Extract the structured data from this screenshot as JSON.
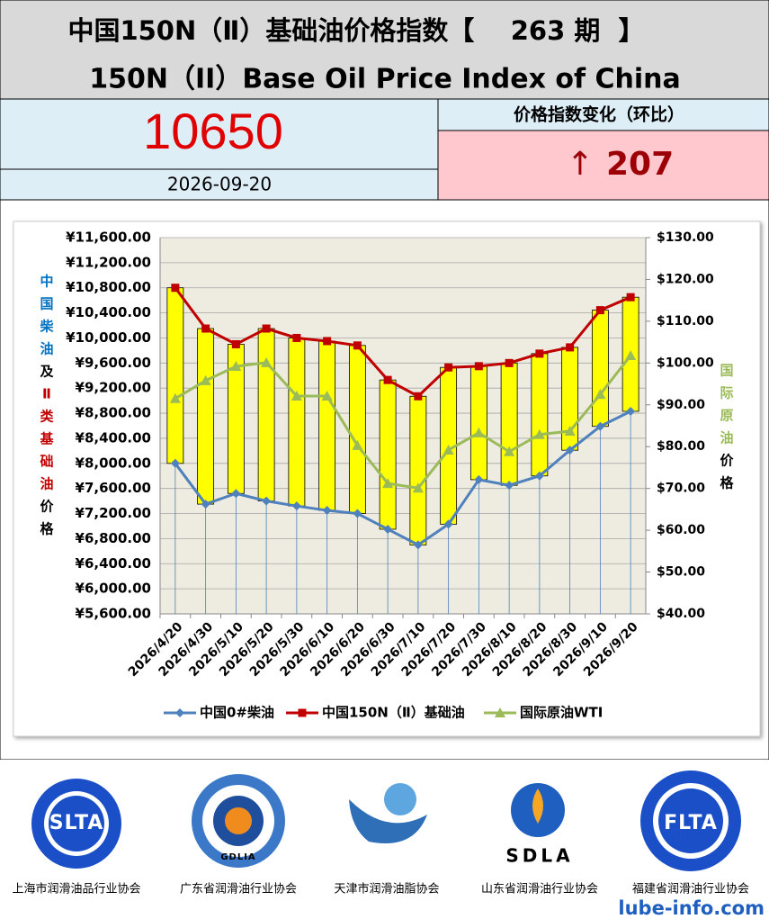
{
  "header": {
    "title": "中国150N（Ⅱ）基础油价格指数【    263 期  】",
    "subtitle": "150N（II）Base Oil Price Index of China",
    "index_value": 10650,
    "date": "2026-09-20",
    "change_label": "价格指数变化（环比）",
    "change_arrow": "↑",
    "change_value": 207
  },
  "chart_data": {
    "type": "line",
    "categories": [
      "2026/4/20",
      "2026/4/30",
      "2026/5/10",
      "2026/5/20",
      "2026/5/30",
      "2026/6/10",
      "2026/6/20",
      "2026/6/30",
      "2026/7/10",
      "2026/7/20",
      "2026/7/30",
      "2026/8/10",
      "2026/8/20",
      "2026/8/30",
      "2026/9/10",
      "2026/9/20"
    ],
    "series": [
      {
        "name": "中国0#柴油",
        "color": "#4f81bd",
        "marker": "diamond",
        "values": [
          8000,
          7350,
          7520,
          7400,
          7320,
          7250,
          7200,
          6950,
          6700,
          7030,
          7740,
          7650,
          7800,
          8210,
          8590,
          8830
        ]
      },
      {
        "name": "中国150N（Ⅱ）基础油",
        "color": "#c00000",
        "marker": "square",
        "values": [
          10800,
          10150,
          9900,
          10150,
          10000,
          9950,
          9880,
          9330,
          9070,
          9530,
          9550,
          9600,
          9750,
          9850,
          10443,
          10650
        ]
      },
      {
        "name": "国际原油WTI",
        "color": "#9bbb59",
        "marker": "triangle",
        "axis": "y2",
        "values": [
          91.5,
          95.8,
          99.2,
          100.1,
          92.1,
          92.1,
          80.3,
          71.2,
          70.1,
          79.2,
          83.3,
          78.8,
          82.9,
          83.7,
          92.5,
          101.8
        ]
      }
    ],
    "ylim": [
      5600,
      11600
    ],
    "yticks": [
      {
        "value": 5600,
        "label": "¥5,600.00"
      },
      {
        "value": 6000,
        "label": "¥6,000.00"
      },
      {
        "value": 6400,
        "label": "¥6,400.00"
      },
      {
        "value": 6800,
        "label": "¥6,800.00"
      },
      {
        "value": 7200,
        "label": "¥7,200.00"
      },
      {
        "value": 7600,
        "label": "¥7,600.00"
      },
      {
        "value": 8000,
        "label": "¥8,000.00"
      },
      {
        "value": 8400,
        "label": "¥8,400.00"
      },
      {
        "value": 8800,
        "label": "¥8,800.00"
      },
      {
        "value": 9200,
        "label": "¥9,200.00"
      },
      {
        "value": 9600,
        "label": "¥9,600.00"
      },
      {
        "value": 10000,
        "label": "¥10,000.00"
      },
      {
        "value": 10400,
        "label": "¥10,400.00"
      },
      {
        "value": 10800,
        "label": "¥10,800.00"
      },
      {
        "value": 11200,
        "label": "¥11,200.00"
      },
      {
        "value": 11600,
        "label": "¥11,600.00"
      }
    ],
    "y2lim": [
      40,
      130
    ],
    "y2ticks": [
      {
        "value": 40,
        "label": "$40.00"
      },
      {
        "value": 50,
        "label": "$50.00"
      },
      {
        "value": 60,
        "label": "$60.00"
      },
      {
        "value": 70,
        "label": "$70.00"
      },
      {
        "value": 80,
        "label": "$80.00"
      },
      {
        "value": 90,
        "label": "$90.00"
      },
      {
        "value": 100,
        "label": "$100.00"
      },
      {
        "value": 110,
        "label": "$110.00"
      },
      {
        "value": 120,
        "label": "$120.00"
      },
      {
        "value": 130,
        "label": "$130.00"
      }
    ],
    "ylabel_parts": [
      {
        "text": "中国柴油",
        "color": "#0070c0"
      },
      {
        "text": "及",
        "color": "#000000"
      },
      {
        "text": "Ⅱ类基础油",
        "color": "#c00000"
      },
      {
        "text": "价格",
        "color": "#000000"
      }
    ],
    "y2label_parts": [
      {
        "text": "国际原油",
        "color": "#9bbb59"
      },
      {
        "text": "价格",
        "color": "#000000"
      }
    ],
    "updown_bars": {
      "color": "#ffff00"
    },
    "grid": true,
    "legend": "bottom"
  },
  "footer": {
    "logos": [
      {
        "abbr": "SLTA",
        "name": "上海市润滑油品行业协会"
      },
      {
        "abbr": "GDLIA",
        "name": "广东省润滑油行业协会"
      },
      {
        "name": "天津市润滑油脂协会"
      },
      {
        "abbr": "SDLA",
        "name": "山东省润滑油行业协会"
      },
      {
        "abbr": "FLTA",
        "name": "福建省润滑油行业协会"
      }
    ],
    "site": "lube-info.com"
  }
}
